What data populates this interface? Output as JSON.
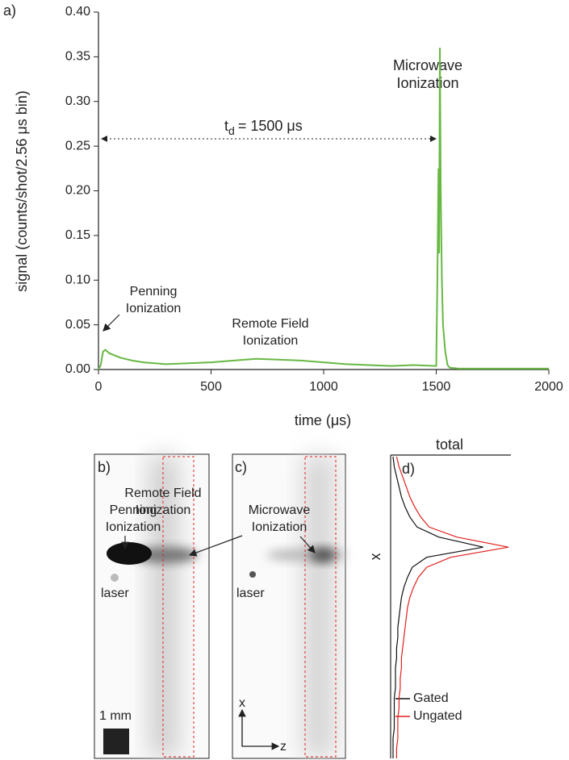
{
  "chart_data": [
    {
      "type": "line",
      "panel": "a)",
      "ylabel": "signal (counts/shot/2.56 μs bin)",
      "xlabel": "time (μs)",
      "x": [
        0,
        10,
        20,
        30,
        50,
        100,
        150,
        200,
        300,
        400,
        500,
        600,
        700,
        800,
        900,
        1000,
        1100,
        1200,
        1300,
        1400,
        1500,
        1505,
        1510,
        1513,
        1516,
        1520,
        1525,
        1530,
        1540,
        1550,
        1560,
        1600,
        2000
      ],
      "values": [
        0.0,
        0.005,
        0.02,
        0.022,
        0.018,
        0.013,
        0.01,
        0.008,
        0.006,
        0.007,
        0.008,
        0.01,
        0.012,
        0.011,
        0.01,
        0.008,
        0.006,
        0.005,
        0.004,
        0.005,
        0.004,
        0.1,
        0.225,
        0.13,
        0.36,
        0.2,
        0.1,
        0.05,
        0.02,
        0.005,
        0.002,
        0.001,
        0.001
      ],
      "color": "#67b843",
      "xlim": [
        0,
        2000
      ],
      "xticks": [
        0,
        500,
        1000,
        1500,
        2000
      ],
      "ylim": [
        0,
        0.4
      ],
      "yticks": [
        {
          "value": 0,
          "label": "0.00"
        },
        {
          "value": 0.05,
          "label": "0.05"
        },
        {
          "value": 0.1,
          "label": "0.10"
        },
        {
          "value": 0.15,
          "label": "0.15"
        },
        {
          "value": 0.2,
          "label": "0.20"
        },
        {
          "value": 0.25,
          "label": "0.25"
        },
        {
          "value": 0.3,
          "label": "0.30"
        },
        {
          "value": 0.35,
          "label": "0.35"
        },
        {
          "value": 0.4,
          "label": "0.40"
        }
      ],
      "delay": {
        "symbol": "t",
        "subscript": "d",
        "text": "= 1500 μs"
      },
      "annotations": [
        [
          "Microwave",
          "Ionization"
        ],
        [
          "Penning",
          "Ionization"
        ],
        [
          "Remote Field",
          "Ionization"
        ]
      ]
    },
    {
      "type": "image",
      "panel": "b)",
      "annotations": [
        [
          "Remote Field",
          "Ionization"
        ],
        [
          "Penning",
          "Ionization"
        ],
        [
          "laser"
        ],
        [
          "1 mm"
        ]
      ]
    },
    {
      "type": "image",
      "panel": "c)",
      "annotations": [
        [
          "Microwave",
          "Ionization"
        ],
        [
          "laser"
        ],
        [
          "x"
        ],
        [
          "z"
        ]
      ]
    },
    {
      "type": "profile",
      "panel": "d)",
      "title": "total",
      "ylabel": "x",
      "xlim": [
        0,
        1
      ],
      "series": [
        {
          "name": "Gated",
          "color": "#111111",
          "values": [
            0.02,
            0.03,
            0.05,
            0.07,
            0.09,
            0.12,
            0.16,
            0.22,
            0.4,
            0.77,
            0.3,
            0.18,
            0.14,
            0.11,
            0.09,
            0.08,
            0.07,
            0.06,
            0.06,
            0.05,
            0.05,
            0.04,
            0.04,
            0.04,
            0.03,
            0.03,
            0.03,
            0.03,
            0.02,
            0.02,
            0.02
          ]
        },
        {
          "name": "Ungated",
          "color": "#e0201b",
          "values": [
            0.05,
            0.07,
            0.1,
            0.13,
            0.16,
            0.2,
            0.25,
            0.32,
            0.55,
            0.98,
            0.5,
            0.3,
            0.23,
            0.19,
            0.16,
            0.14,
            0.13,
            0.12,
            0.11,
            0.1,
            0.09,
            0.09,
            0.08,
            0.08,
            0.07,
            0.07,
            0.06,
            0.06,
            0.06,
            0.05,
            0.05
          ]
        }
      ]
    }
  ]
}
